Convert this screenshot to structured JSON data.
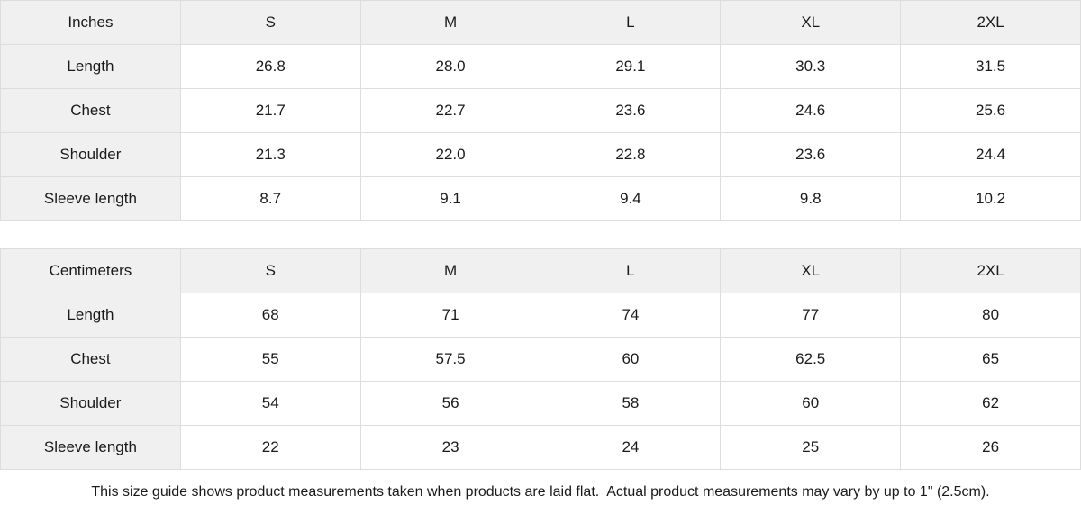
{
  "colors": {
    "header_bg": "#f0f0f0",
    "border": "#dddddd",
    "text": "#1a1a1a",
    "cell_bg": "#ffffff"
  },
  "tables": [
    {
      "unit_label": "Inches",
      "sizes": [
        "S",
        "M",
        "L",
        "XL",
        "2XL"
      ],
      "rows": [
        {
          "label": "Length",
          "values": [
            "26.8",
            "28.0",
            "29.1",
            "30.3",
            "31.5"
          ]
        },
        {
          "label": "Chest",
          "values": [
            "21.7",
            "22.7",
            "23.6",
            "24.6",
            "25.6"
          ]
        },
        {
          "label": "Shoulder",
          "values": [
            "21.3",
            "22.0",
            "22.8",
            "23.6",
            "24.4"
          ]
        },
        {
          "label": "Sleeve length",
          "values": [
            "8.7",
            "9.1",
            "9.4",
            "9.8",
            "10.2"
          ]
        }
      ]
    },
    {
      "unit_label": "Centimeters",
      "sizes": [
        "S",
        "M",
        "L",
        "XL",
        "2XL"
      ],
      "rows": [
        {
          "label": "Length",
          "values": [
            "68",
            "71",
            "74",
            "77",
            "80"
          ]
        },
        {
          "label": "Chest",
          "values": [
            "55",
            "57.5",
            "60",
            "62.5",
            "65"
          ]
        },
        {
          "label": "Shoulder",
          "values": [
            "54",
            "56",
            "58",
            "60",
            "62"
          ]
        },
        {
          "label": "Sleeve length",
          "values": [
            "22",
            "23",
            "24",
            "25",
            "26"
          ]
        }
      ]
    }
  ],
  "footer": {
    "note": "This size guide shows product measurements taken when products are laid flat.  Actual product measurements may vary by up to 1\" (2.5cm)."
  }
}
